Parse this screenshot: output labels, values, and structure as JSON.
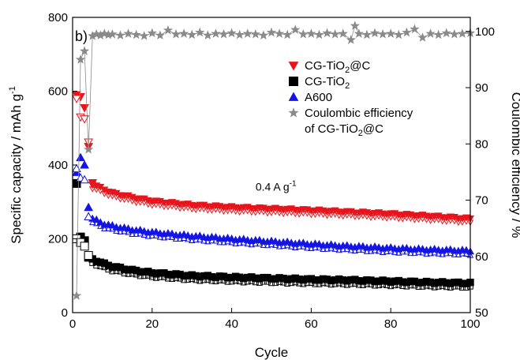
{
  "chart_data": {
    "type": "scatter",
    "panel_label": "b)",
    "xlabel": "Cycle",
    "ylabel_left": "Specific capacity / mAh g",
    "ylabel_left_sup": "-1",
    "ylabel_right": "Coulombic efficiency / %",
    "xlim": [
      0,
      100
    ],
    "ylim_left": [
      0,
      800
    ],
    "ylim_right": [
      50,
      102.5
    ],
    "xticks": [
      0,
      20,
      40,
      60,
      80,
      100
    ],
    "yticks_left": [
      0,
      200,
      400,
      600,
      800
    ],
    "yticks_right": [
      50,
      60,
      70,
      80,
      90,
      100
    ],
    "annotation": {
      "text": "0.4 A g",
      "sup": "-1",
      "x": 46,
      "y": 330
    },
    "legend": {
      "placement": "top-right",
      "entries": [
        {
          "label": "CG-TiO",
          "sub": "2",
          "tail": "@C",
          "series": "cg_tio2_c"
        },
        {
          "label": "CG-TiO",
          "sub": "2",
          "tail": "",
          "series": "cg_tio2"
        },
        {
          "label": "A600",
          "sub": "",
          "tail": "",
          "series": "a600"
        },
        {
          "label": "Coulombic efficiency",
          "sub": "",
          "tail": "",
          "series": "ce"
        },
        {
          "label": "of CG-TiO",
          "sub": "2",
          "tail": "@C",
          "series": ""
        }
      ]
    },
    "series": [
      {
        "id": "cg_tio2_c",
        "color": "#e8141b",
        "marker": "triangle-down",
        "axis": "left",
        "discharge": [
          [
            1,
            590
          ],
          [
            2,
            585
          ],
          [
            3,
            555
          ],
          [
            4,
            450
          ],
          [
            5,
            352
          ]
        ],
        "charge": [
          [
            1,
            580
          ],
          [
            2,
            530
          ],
          [
            3,
            525
          ],
          [
            4,
            462
          ]
        ],
        "trend": [
          [
            5,
            348
          ],
          [
            10,
            325
          ],
          [
            15,
            313
          ],
          [
            20,
            303
          ],
          [
            30,
            292
          ],
          [
            40,
            286
          ],
          [
            50,
            282
          ],
          [
            60,
            278
          ],
          [
            70,
            273
          ],
          [
            80,
            268
          ],
          [
            90,
            262
          ],
          [
            100,
            255
          ]
        ]
      },
      {
        "id": "cg_tio2",
        "color": "#000000",
        "marker": "square",
        "axis": "left",
        "discharge": [
          [
            1,
            350
          ],
          [
            2,
            205
          ],
          [
            3,
            195
          ],
          [
            4,
            150
          ]
        ],
        "charge": [
          [
            1,
            200
          ],
          [
            2,
            190
          ],
          [
            3,
            180
          ],
          [
            4,
            155
          ]
        ],
        "trend": [
          [
            5,
            145
          ],
          [
            8,
            132
          ],
          [
            10,
            125
          ],
          [
            15,
            115
          ],
          [
            20,
            108
          ],
          [
            30,
            100
          ],
          [
            40,
            96
          ],
          [
            50,
            93
          ],
          [
            60,
            90
          ],
          [
            70,
            88
          ],
          [
            80,
            85
          ],
          [
            90,
            82
          ],
          [
            100,
            80
          ]
        ]
      },
      {
        "id": "a600",
        "color": "#1414e6",
        "marker": "triangle-up",
        "axis": "left",
        "discharge": [
          [
            1,
            380
          ],
          [
            2,
            420
          ],
          [
            3,
            400
          ],
          [
            4,
            285
          ]
        ],
        "charge": [
          [
            1,
            390
          ],
          [
            2,
            365
          ],
          [
            3,
            360
          ],
          [
            4,
            260
          ]
        ],
        "trend": [
          [
            5,
            255
          ],
          [
            8,
            240
          ],
          [
            10,
            235
          ],
          [
            15,
            225
          ],
          [
            20,
            218
          ],
          [
            30,
            208
          ],
          [
            40,
            200
          ],
          [
            50,
            193
          ],
          [
            60,
            186
          ],
          [
            70,
            180
          ],
          [
            80,
            175
          ],
          [
            90,
            171
          ],
          [
            100,
            168
          ]
        ]
      },
      {
        "id": "ce",
        "color": "#8a8a8a",
        "marker": "star",
        "axis": "right",
        "points": [
          [
            1,
            53
          ],
          [
            2,
            95
          ],
          [
            3,
            96.5
          ],
          [
            4,
            79
          ],
          [
            5,
            99.2
          ],
          [
            6,
            99.5
          ],
          [
            7,
            99.3
          ],
          [
            8,
            99.6
          ],
          [
            9,
            99.4
          ],
          [
            10,
            99.5
          ],
          [
            12,
            99.3
          ],
          [
            14,
            99.6
          ],
          [
            16,
            99.4
          ],
          [
            18,
            99.2
          ],
          [
            20,
            99.7
          ],
          [
            22,
            99.3
          ],
          [
            24,
            100.2
          ],
          [
            26,
            99.5
          ],
          [
            28,
            99.6
          ],
          [
            30,
            99.4
          ],
          [
            32,
            99.8
          ],
          [
            34,
            99.3
          ],
          [
            36,
            99.6
          ],
          [
            38,
            99.5
          ],
          [
            40,
            99.7
          ],
          [
            42,
            99.4
          ],
          [
            44,
            99.6
          ],
          [
            46,
            99.5
          ],
          [
            48,
            99.3
          ],
          [
            50,
            99.8
          ],
          [
            52,
            99.6
          ],
          [
            54,
            99.4
          ],
          [
            56,
            100.3
          ],
          [
            58,
            99.5
          ],
          [
            60,
            99.6
          ],
          [
            62,
            99.4
          ],
          [
            64,
            99.7
          ],
          [
            66,
            99.5
          ],
          [
            68,
            99.6
          ],
          [
            70,
            98.5
          ],
          [
            71,
            101.0
          ],
          [
            72,
            99.6
          ],
          [
            74,
            99.4
          ],
          [
            76,
            99.7
          ],
          [
            78,
            99.5
          ],
          [
            80,
            99.6
          ],
          [
            82,
            99.4
          ],
          [
            84,
            99.8
          ],
          [
            86,
            100.4
          ],
          [
            88,
            98.9
          ],
          [
            90,
            99.6
          ],
          [
            92,
            99.4
          ],
          [
            94,
            99.7
          ],
          [
            96,
            99.5
          ],
          [
            98,
            99.6
          ],
          [
            100,
            99.7
          ]
        ]
      }
    ]
  }
}
